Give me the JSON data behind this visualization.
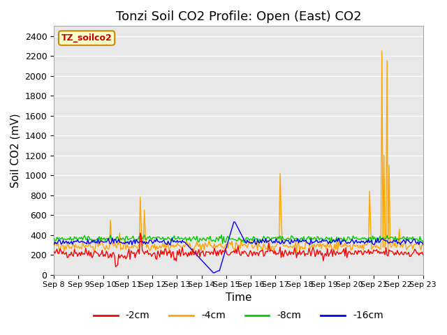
{
  "title": "Tonzi Soil CO2 Profile: Open (East) CO2",
  "ylabel": "Soil CO2 (mV)",
  "xlabel": "Time",
  "ylim": [
    0,
    2500
  ],
  "yticks": [
    0,
    200,
    400,
    600,
    800,
    1000,
    1200,
    1400,
    1600,
    1800,
    2000,
    2200,
    2400
  ],
  "legend_label": "TZ_soilco2",
  "series": {
    "-2cm": {
      "color": "#ff0000",
      "label": "-2cm"
    },
    "-4cm": {
      "color": "#ffa500",
      "label": "-4cm"
    },
    "-8cm": {
      "color": "#00cc00",
      "label": "-8cm"
    },
    "-16cm": {
      "color": "#0000ff",
      "label": "-16cm"
    }
  },
  "background_color": "#e8e8e8",
  "title_fontsize": 13,
  "axis_fontsize": 11,
  "legend_fontsize": 10
}
